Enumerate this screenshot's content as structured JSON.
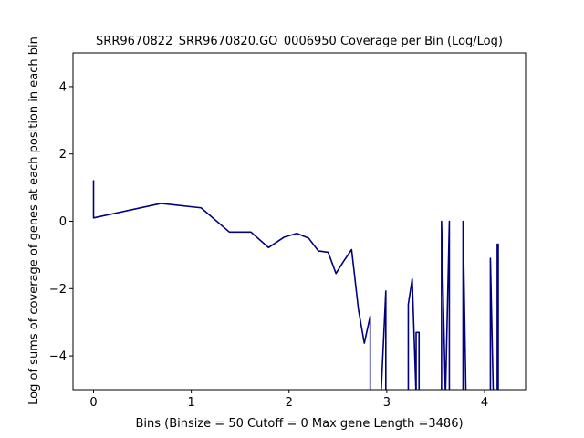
{
  "chart_data": {
    "type": "line",
    "title": "SRR9670822_SRR9670820.GO_0006950 Coverage per Bin (Log/Log)",
    "xlabel": "Bins  (Binsize = 50 Cutoff = 0 Max gene Length =3486)",
    "ylabel": "Log of sums of coverage of genes at each position in each bin",
    "xlim": [
      -0.21,
      4.42
    ],
    "ylim": [
      -5,
      5
    ],
    "xticks": [
      0,
      1,
      2,
      3,
      4
    ],
    "yticks": [
      -4,
      -2,
      0,
      2,
      4
    ],
    "grid": false,
    "legend": "none",
    "colors": {
      "line": "#000080"
    },
    "series": [
      {
        "x": [
          0.0,
          0.0,
          0.69,
          1.1,
          1.39,
          1.61,
          1.79,
          1.95,
          2.08,
          2.2,
          2.3,
          2.4,
          2.48,
          2.56,
          2.64,
          2.71,
          2.77,
          2.83,
          2.83,
          2.94,
          2.99,
          2.99,
          3.0,
          3.22,
          3.22,
          3.26,
          3.3,
          3.3,
          3.33,
          3.33,
          3.56,
          3.56,
          3.6,
          3.6,
          3.64,
          3.64,
          3.66,
          3.78,
          3.78,
          3.81,
          4.06,
          4.06,
          4.09,
          4.13,
          4.13,
          4.14,
          4.14,
          4.15
        ],
        "y": [
          1.22,
          0.1,
          0.53,
          0.4,
          -0.32,
          -0.32,
          -0.78,
          -0.47,
          -0.36,
          -0.5,
          -0.88,
          -0.92,
          -1.55,
          -1.18,
          -0.84,
          -2.62,
          -3.62,
          -2.82,
          -5.2,
          -5.2,
          -2.07,
          -5.2,
          -5.2,
          -5.2,
          -2.47,
          -1.71,
          -5.2,
          -3.3,
          -3.3,
          -5.2,
          -5.2,
          0.0,
          -5.2,
          -5.2,
          0.0,
          -5.2,
          -5.2,
          -5.2,
          0.0,
          -5.2,
          -5.2,
          -1.1,
          -5.2,
          -5.2,
          -0.68,
          -0.68,
          -5.2,
          -5.2
        ]
      }
    ]
  }
}
